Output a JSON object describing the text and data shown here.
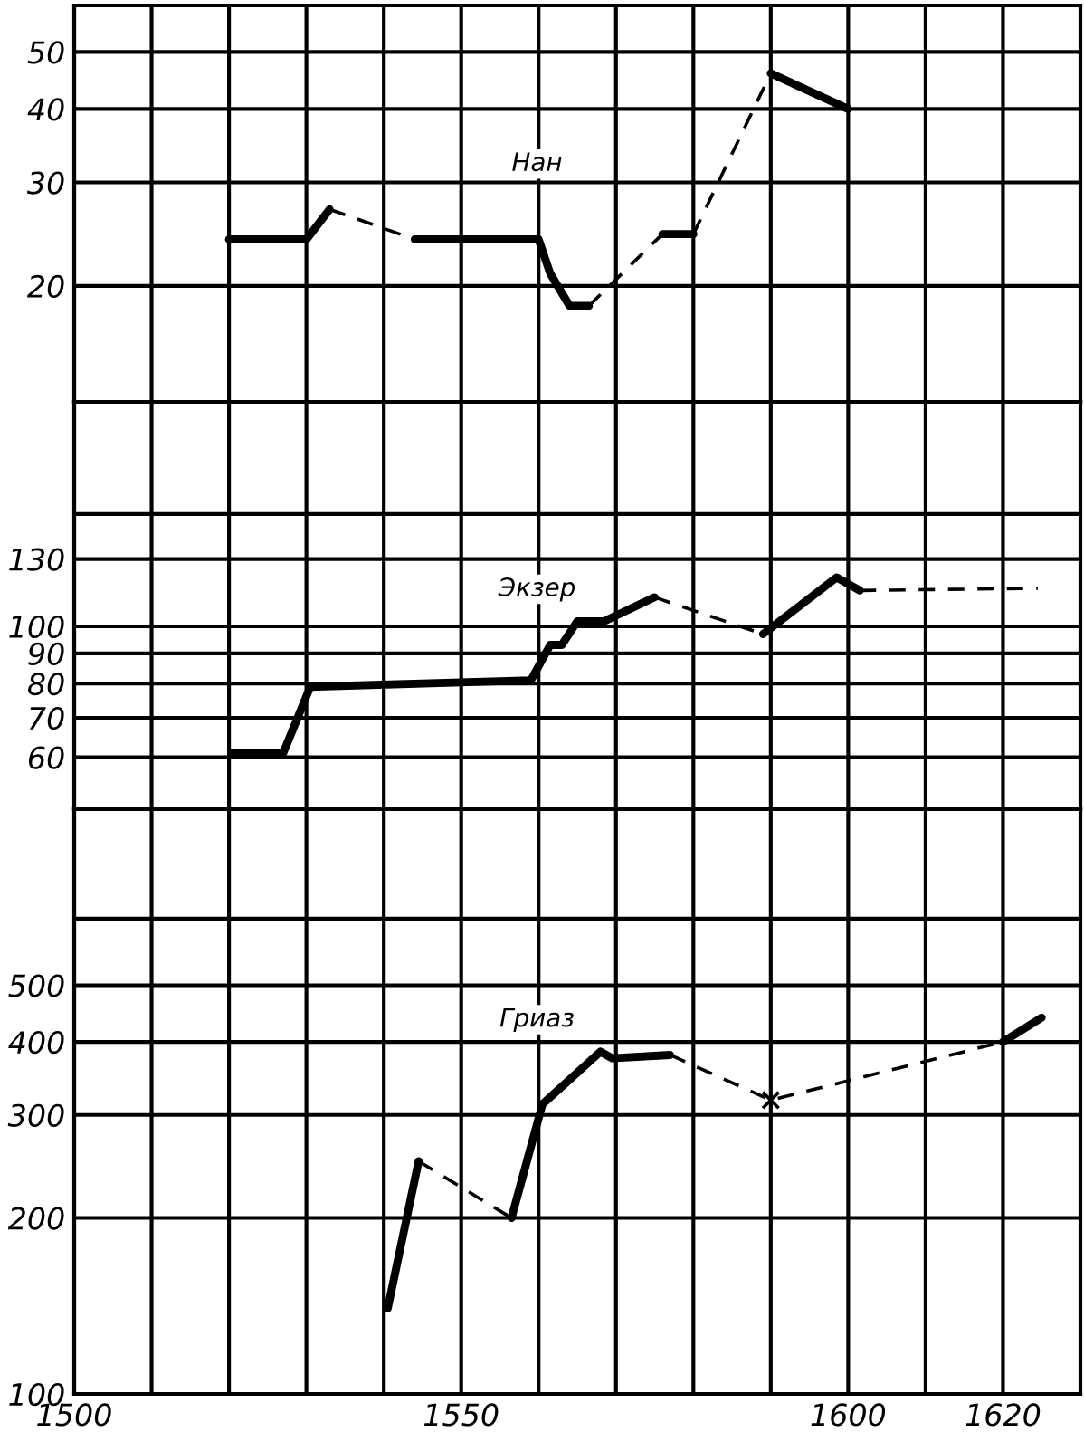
{
  "chart_data": [
    {
      "type": "line",
      "title": "Нан",
      "log": "y",
      "grid": true,
      "tick_labels": "y",
      "xlim": [
        1500,
        1630
      ],
      "ylim": [
        12.7,
        60
      ],
      "xticks": [
        {
          "value": 1500,
          "label": null
        },
        {
          "value": 1510,
          "label": null
        },
        {
          "value": 1520,
          "label": null
        },
        {
          "value": 1530,
          "label": null
        },
        {
          "value": 1540,
          "label": null
        },
        {
          "value": 1550,
          "label": null
        },
        {
          "value": 1560,
          "label": null
        },
        {
          "value": 1570,
          "label": null
        },
        {
          "value": 1580,
          "label": null
        },
        {
          "value": 1590,
          "label": null
        },
        {
          "value": 1600,
          "label": null
        },
        {
          "value": 1610,
          "label": null
        },
        {
          "value": 1620,
          "label": null
        }
      ],
      "yticks": [
        20,
        30,
        40,
        50
      ],
      "series": [
        {
          "color": "#000000",
          "line_style": "solid",
          "x": [
            1520,
            1530,
            1533
          ],
          "values": [
            24,
            24,
            27
          ]
        },
        {
          "color": "#000000",
          "line_style": "solid",
          "x": [
            1544,
            1560,
            1561.5,
            1564,
            1566.5
          ],
          "values": [
            24,
            24,
            21,
            18.5,
            18.5
          ]
        },
        {
          "color": "#000000",
          "line_style": "solid",
          "x": [
            1576,
            1580
          ],
          "values": [
            24.5,
            24.5
          ]
        },
        {
          "color": "#000000",
          "line_style": "solid",
          "x": [
            1590,
            1600
          ],
          "values": [
            46,
            40
          ]
        },
        {
          "color": "#000000",
          "line_style": "dashed",
          "x": [
            1533,
            1544
          ],
          "values": [
            27,
            24
          ]
        },
        {
          "color": "#000000",
          "line_style": "dashed",
          "x": [
            1566.5,
            1576
          ],
          "values": [
            18.5,
            24.5
          ]
        },
        {
          "color": "#000000",
          "line_style": "dashed",
          "x": [
            1580,
            1590
          ],
          "values": [
            24.5,
            46
          ]
        }
      ]
    },
    {
      "type": "line",
      "title": "Экзер",
      "log": "y",
      "grid": true,
      "tick_labels": "y",
      "xlim": [
        1500,
        1630
      ],
      "ylim": [
        49,
        240
      ],
      "xticks": [
        {
          "value": 1500,
          "label": null
        },
        {
          "value": 1510,
          "label": null
        },
        {
          "value": 1520,
          "label": null
        },
        {
          "value": 1530,
          "label": null
        },
        {
          "value": 1540,
          "label": null
        },
        {
          "value": 1550,
          "label": null
        },
        {
          "value": 1560,
          "label": null
        },
        {
          "value": 1570,
          "label": null
        },
        {
          "value": 1580,
          "label": null
        },
        {
          "value": 1590,
          "label": null
        },
        {
          "value": 1600,
          "label": null
        },
        {
          "value": 1610,
          "label": null
        },
        {
          "value": 1620,
          "label": null
        }
      ],
      "yticks": [
        60,
        70,
        80,
        90,
        100,
        130,
        {
          "value": 155,
          "label": null
        }
      ],
      "series": [
        {
          "color": "#000000",
          "line_style": "solid",
          "x": [
            1520.5,
            1527,
            1530.5,
            1559,
            1561.5,
            1563,
            1565,
            1568.5,
            1575
          ],
          "values": [
            61,
            61,
            79,
            81,
            93,
            93,
            102,
            102,
            112
          ]
        },
        {
          "color": "#000000",
          "line_style": "solid",
          "x": [
            1589,
            1598.5,
            1601.5
          ],
          "values": [
            97,
            121,
            115
          ]
        },
        {
          "color": "#000000",
          "line_style": "dashed",
          "x": [
            1575,
            1589
          ],
          "values": [
            112,
            97
          ]
        },
        {
          "color": "#000000",
          "line_style": "dashed",
          "x": [
            1601.5,
            1624.5
          ],
          "values": [
            115,
            116
          ]
        }
      ]
    },
    {
      "type": "line",
      "title": "Гриаз",
      "log": "y",
      "grid": true,
      "xlim": [
        1500,
        1630
      ],
      "ylim": [
        100,
        1000
      ],
      "xticks": [
        1500,
        {
          "value": 1510,
          "label": null
        },
        {
          "value": 1520,
          "label": null
        },
        {
          "value": 1530,
          "label": null
        },
        {
          "value": 1540,
          "label": null
        },
        1550,
        {
          "value": 1560,
          "label": null
        },
        {
          "value": 1570,
          "label": null
        },
        {
          "value": 1580,
          "label": null
        },
        {
          "value": 1590,
          "label": null
        },
        1600,
        {
          "value": 1610,
          "label": null
        },
        1620
      ],
      "yticks": [
        100,
        200,
        300,
        400,
        500,
        {
          "value": 650,
          "label": null
        }
      ],
      "series": [
        {
          "color": "#000000",
          "line_style": "solid",
          "x": [
            1540.5,
            1544.5
          ],
          "values": [
            140,
            250
          ]
        },
        {
          "color": "#000000",
          "line_style": "solid",
          "x": [
            1556.5,
            1560.5,
            1568,
            1569.5,
            1577
          ],
          "values": [
            200,
            313,
            385,
            375,
            380
          ]
        },
        {
          "color": "#000000",
          "line_style": "solid",
          "x": [
            1620,
            1625
          ],
          "values": [
            400,
            440
          ]
        },
        {
          "color": "#000000",
          "line_style": "dashed",
          "x": [
            1544.5,
            1556.5
          ],
          "values": [
            250,
            200
          ]
        },
        {
          "color": "#000000",
          "line_style": "dashed",
          "x": [
            1577,
            1590,
            1620
          ],
          "values": [
            380,
            318,
            400
          ]
        },
        {
          "type": "scatter",
          "color": "#000000",
          "marker": "cross",
          "x": [
            1590
          ],
          "values": [
            318
          ]
        }
      ]
    }
  ]
}
